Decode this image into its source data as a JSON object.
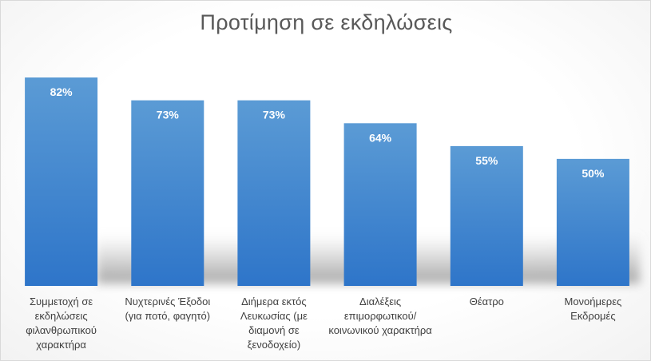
{
  "chart_data": {
    "type": "bar",
    "title": "Προτίμηση σε εκδηλώσεις",
    "categories": [
      "Συμμετοχή σε εκδηλώσεις φιλανθρωπικού χαρακτήρα",
      "Νυχτερινές Έξοδοι (για ποτό, φαγητό)",
      "Διήμερα εκτός Λευκωσίας (με διαμονή σε ξενοδοχείο)",
      "Διαλέξεις επιμορφωτικού/ κοινωνικού χαρακτήρα",
      "Θέατρο",
      "Μονοήμερες Εκδρομές"
    ],
    "values": [
      82,
      73,
      73,
      64,
      55,
      50
    ],
    "data_labels": [
      "82%",
      "73%",
      "73%",
      "64%",
      "55%",
      "50%"
    ],
    "unit": "%",
    "ylim": [
      0,
      82
    ],
    "xlabel": "",
    "ylabel": "",
    "grid": false,
    "legend": "none",
    "colors": {
      "bar_top": "#5b9bd5",
      "bar_bottom": "#2e75c9",
      "label": "#ffffff"
    }
  }
}
